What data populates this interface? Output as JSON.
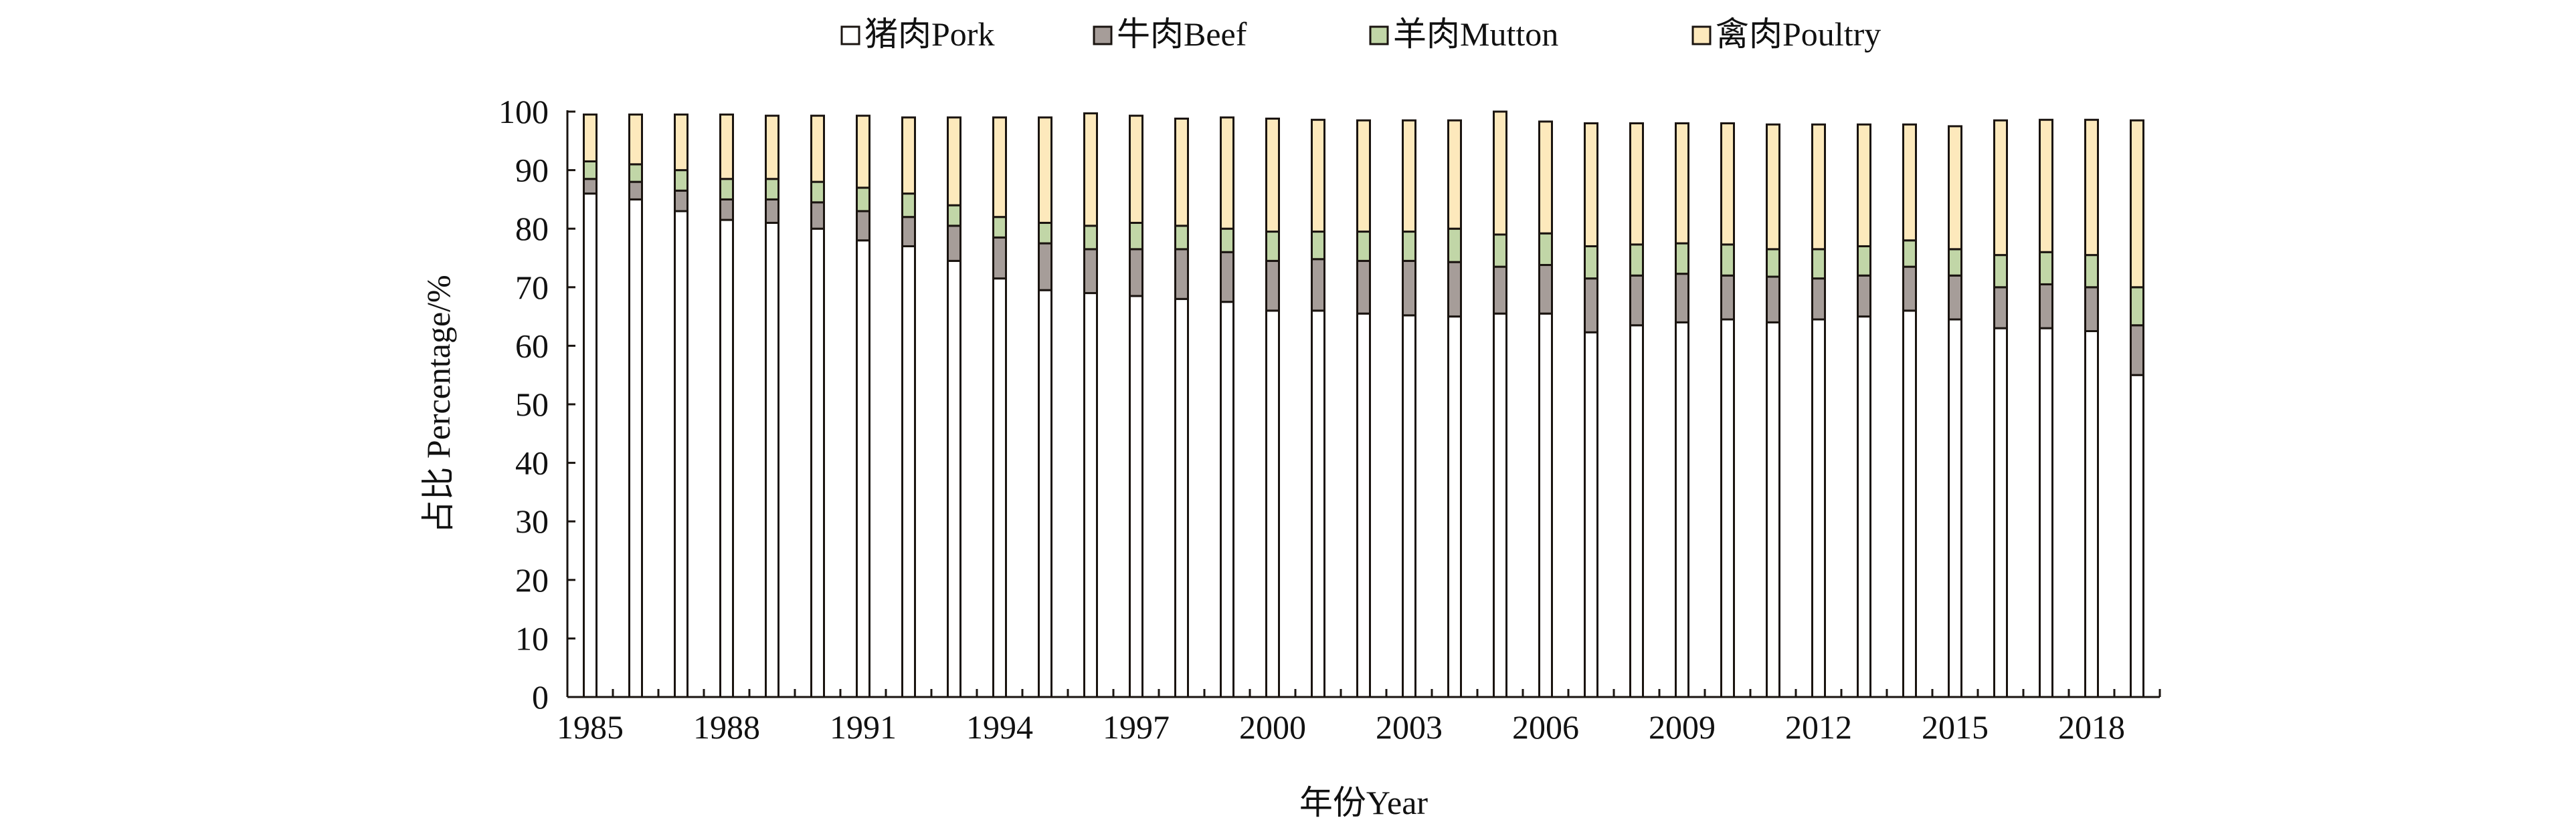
{
  "chart_data": {
    "type": "bar",
    "stacked": true,
    "title": "",
    "xlabel": "年份Year",
    "ylabel": "占比 Percentage/%",
    "ylim": [
      0,
      100
    ],
    "yticks": [
      0,
      10,
      20,
      30,
      40,
      50,
      60,
      70,
      80,
      90,
      100
    ],
    "xtick_labels": [
      "1985",
      "1988",
      "1991",
      "1994",
      "1997",
      "2000",
      "2003",
      "2006",
      "2009",
      "2012",
      "2015",
      "2018"
    ],
    "legend_position": "top-center",
    "grid": false,
    "categories": [
      "1985",
      "1986",
      "1987",
      "1988",
      "1989",
      "1990",
      "1991",
      "1992",
      "1993",
      "1994",
      "1995",
      "1996",
      "1997",
      "1998",
      "1999",
      "2000",
      "2001",
      "2002",
      "2003",
      "2004",
      "2005",
      "2006",
      "2007",
      "2008",
      "2009",
      "2010",
      "2011",
      "2012",
      "2013",
      "2014",
      "2015",
      "2016",
      "2017",
      "2018",
      "2019"
    ],
    "series": [
      {
        "name": "猪肉Pork",
        "color": "#ffffff",
        "values": [
          86,
          85,
          83,
          81.5,
          81,
          80,
          78,
          77,
          74.5,
          71.5,
          69.5,
          69,
          68.5,
          68,
          67.5,
          66,
          66,
          65.5,
          65.2,
          65,
          65.5,
          65.5,
          62.3,
          63.5,
          64,
          64.5,
          64,
          64.5,
          65,
          66,
          64.5,
          63,
          63,
          62.5,
          55
        ]
      },
      {
        "name": "牛肉Beef",
        "color": "#a69d99",
        "values": [
          2.5,
          3,
          3.5,
          3.5,
          4,
          4.5,
          5,
          5,
          6,
          7,
          8,
          7.5,
          8,
          8.5,
          8.5,
          8.5,
          8.8,
          9,
          9.3,
          9.3,
          8,
          8.3,
          9.2,
          8.5,
          8.3,
          7.5,
          7.8,
          7,
          7,
          7.5,
          7.5,
          7,
          7.5,
          7.5,
          8.5
        ]
      },
      {
        "name": "羊肉Mutton",
        "color": "#c1d6a7",
        "values": [
          3,
          3,
          3.5,
          3.5,
          3.5,
          3.5,
          4,
          4,
          3.5,
          3.5,
          3.5,
          4,
          4.5,
          4,
          4,
          5,
          4.7,
          5,
          5,
          5.7,
          5.5,
          5.4,
          5.5,
          5.3,
          5.2,
          5.3,
          4.7,
          5,
          5,
          4.5,
          4.5,
          5.5,
          5.5,
          5.5,
          6.5
        ]
      },
      {
        "name": "禽肉Poultry",
        "color": "#fde9bc",
        "values": [
          8,
          8.5,
          9.5,
          11,
          10.8,
          11.3,
          12.3,
          13,
          15,
          17,
          18,
          19.2,
          18.3,
          18.3,
          19,
          19.3,
          19.1,
          19,
          19,
          18.5,
          21,
          19.1,
          21,
          20.7,
          20.5,
          20.7,
          21.3,
          21.3,
          20.8,
          19.8,
          21,
          23,
          22.6,
          23.1,
          28.5
        ]
      }
    ]
  }
}
